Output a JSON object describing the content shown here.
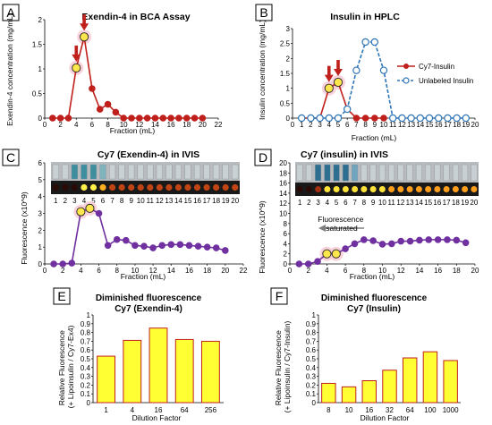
{
  "panels": {
    "A": {
      "letter": "A",
      "title": "Exendin-4 in BCA Assay"
    },
    "B": {
      "letter": "B",
      "title": "Insulin in HPLC"
    },
    "C": {
      "letter": "C",
      "title": "Cy7 (Exendin-4) in IVIS"
    },
    "D": {
      "letter": "D",
      "title": "Cy7 (insulin) in IVIS"
    },
    "E": {
      "letter": "E",
      "title_line1": "Diminished fluorescence",
      "title_line2": "Cy7 (Exendin-4)"
    },
    "F": {
      "letter": "F",
      "title_line1": "Diminished fluorescence",
      "title_line2": "Cy7 (Insulin)"
    }
  },
  "chart_data": [
    {
      "id": "A",
      "type": "line",
      "title": "Exendin-4 in BCA Assay",
      "xlabel": "Fraction (mL)",
      "ylabel": "Exendin-4 concentration (mg/mL)",
      "xlim": [
        0,
        22
      ],
      "ylim": [
        0,
        2
      ],
      "xticks": [
        0,
        2,
        4,
        6,
        8,
        10,
        12,
        14,
        16,
        18,
        20,
        22
      ],
      "yticks": [
        0,
        0.5,
        1,
        1.5,
        2
      ],
      "ytick_labels": [
        "0",
        "0.5",
        "1",
        "1.5",
        "2"
      ],
      "series": [
        {
          "color": "#c0201c",
          "marker": "filled",
          "x": [
            1,
            2,
            3,
            4,
            5,
            6,
            7,
            8,
            9,
            10,
            11,
            12,
            13,
            14,
            15,
            16,
            17,
            18,
            19,
            20
          ],
          "y": [
            0,
            0,
            0,
            1.02,
            1.65,
            0.6,
            0.18,
            0.28,
            0.12,
            0,
            0,
            0,
            0,
            0,
            0,
            0,
            0,
            0,
            0,
            0
          ]
        }
      ],
      "highlight_x": [
        4,
        5
      ],
      "highlight_color": "#fde74c",
      "arrows_at": [
        4,
        5
      ]
    },
    {
      "id": "B",
      "type": "line",
      "title": "Insulin in HPLC",
      "xlabel": "Fraction (mL)",
      "ylabel": "Insulin concentration (mg/mL)",
      "xlim": [
        0,
        20
      ],
      "ylim": [
        0,
        3
      ],
      "xticks": [
        0,
        1,
        2,
        3,
        4,
        5,
        6,
        7,
        8,
        9,
        10,
        11,
        12,
        13,
        14,
        15,
        16,
        17,
        18,
        19,
        20
      ],
      "yticks": [
        0,
        0.5,
        1,
        1.5,
        2,
        2.5,
        3
      ],
      "ytick_labels": [
        "0",
        "0.5",
        "1",
        "1.5",
        "2",
        "2.5",
        "3"
      ],
      "legend": "right",
      "series": [
        {
          "name": "Cy7-Insulin",
          "color": "#c0201c",
          "marker": "filled",
          "x": [
            1,
            2,
            3,
            4,
            5,
            6,
            7,
            8,
            9,
            10
          ],
          "y": [
            0,
            0,
            0,
            1.0,
            1.2,
            0.3,
            0,
            0,
            0,
            0
          ]
        },
        {
          "name": "Unlabeled Insulin",
          "color": "#2e75b6",
          "marker": "open",
          "dashed": true,
          "x": [
            1,
            2,
            3,
            4,
            5,
            6,
            7,
            8,
            9,
            10,
            11,
            12,
            13,
            14,
            15,
            16,
            17,
            18,
            19
          ],
          "y": [
            0,
            0,
            0,
            0,
            0,
            0.3,
            1.6,
            2.55,
            2.55,
            1.6,
            0,
            0,
            0,
            0,
            0,
            0,
            0,
            0,
            0
          ]
        }
      ],
      "highlight_x": [
        4,
        5
      ],
      "highlight_color": "#fde74c",
      "arrows_at": [
        4,
        5
      ]
    },
    {
      "id": "C",
      "type": "line",
      "title": "Cy7 (Exendin-4) in IVIS",
      "xlabel": "Fraction (mL)",
      "ylabel": "Fluorescence (x10^9)",
      "xlim": [
        0,
        22
      ],
      "ylim": [
        0,
        6
      ],
      "xticks": [
        0,
        2,
        4,
        6,
        8,
        10,
        12,
        14,
        16,
        18,
        20,
        22
      ],
      "yticks": [
        0,
        1,
        2,
        3,
        4,
        5,
        6
      ],
      "ytick_labels": [
        "0",
        "1",
        "2",
        "3",
        "4",
        "5",
        "6"
      ],
      "series": [
        {
          "color": "#7030a0",
          "marker": "filled",
          "x": [
            1,
            2,
            3,
            4,
            5,
            6,
            7,
            8,
            9,
            10,
            11,
            12,
            13,
            14,
            15,
            16,
            17,
            18,
            19,
            20
          ],
          "y": [
            0,
            0,
            0.05,
            3.1,
            3.3,
            3.0,
            1.1,
            1.45,
            1.4,
            1.1,
            1.05,
            0.95,
            1.1,
            1.15,
            1.15,
            1.1,
            1.05,
            1.0,
            0.95,
            0.8
          ]
        }
      ],
      "highlight_x": [
        4,
        5
      ],
      "highlight_color": "#fde74c",
      "strip_labels": [
        "1",
        "2",
        "3",
        "4",
        "5",
        "6",
        "7",
        "8",
        "9",
        "10",
        "11",
        "12",
        "13",
        "14",
        "15",
        "16",
        "17",
        "18",
        "19",
        "20"
      ]
    },
    {
      "id": "D",
      "type": "line",
      "title": "Cy7 (insulin) in IVIS",
      "xlabel": "Fraction (mL)",
      "ylabel": "Fluorescence (x10^9)",
      "xlim": [
        0,
        20
      ],
      "ylim": [
        0,
        20
      ],
      "xticks": [
        0,
        2,
        4,
        6,
        8,
        10,
        12,
        14,
        16,
        18,
        20
      ],
      "yticks": [
        0,
        2,
        4,
        6,
        8,
        10,
        12,
        14,
        16,
        18,
        20
      ],
      "ytick_labels": [
        "0",
        "2",
        "4",
        "6",
        "8",
        "10",
        "12",
        "14",
        "16",
        "18",
        "20"
      ],
      "annotation": "Fluorescence saturated",
      "series": [
        {
          "color": "#7030a0",
          "marker": "filled",
          "x": [
            1,
            2,
            3,
            4,
            5,
            6,
            7,
            8,
            9,
            10,
            11,
            12,
            13,
            14,
            15,
            16,
            17,
            18,
            19
          ],
          "y": [
            0,
            0,
            0.5,
            2,
            2,
            3,
            4,
            4.8,
            4.6,
            3.9,
            4.0,
            4.5,
            4.5,
            4.7,
            4.8,
            4.8,
            4.8,
            4.7,
            4.2
          ]
        }
      ],
      "highlight_x": [
        4,
        5
      ],
      "highlight_color": "#fde74c",
      "strip_labels": [
        "1",
        "2",
        "3",
        "4",
        "5",
        "6",
        "7",
        "8",
        "9",
        "10",
        "11",
        "12",
        "13",
        "14",
        "15",
        "16",
        "17",
        "18",
        "19",
        "20"
      ]
    },
    {
      "id": "E",
      "type": "bar",
      "title": "Diminished fluorescence Cy7 (Exendin-4)",
      "xlabel": "Dilution Factor",
      "ylabel": "Relative Fluorescence (+ Lipoinsulin / Cy7-Ex4)",
      "categories": [
        "1",
        "4",
        "16",
        "64",
        "256"
      ],
      "values": [
        0.53,
        0.71,
        0.85,
        0.72,
        0.7
      ],
      "ylim": [
        0,
        1
      ],
      "yticks": [
        0,
        0.1,
        0.2,
        0.3,
        0.4,
        0.5,
        0.6,
        0.7,
        0.8,
        0.9,
        1
      ],
      "ytick_labels": [
        "0",
        "0.1",
        "0.2",
        "0.3",
        "0.4",
        "0.5",
        "0.6",
        "0.7",
        "0.8",
        "0.9",
        "1"
      ],
      "bar_fill": "#ffff33",
      "bar_edge": "#c0201c"
    },
    {
      "id": "F",
      "type": "bar",
      "title": "Diminished fluorescence Cy7 (Insulin)",
      "xlabel": "Dilution Factor",
      "ylabel": "Relative Fluorescence (+ Lipoinsulin / Cy7-Insulin)",
      "categories": [
        "8",
        "10",
        "16",
        "32",
        "64",
        "100",
        "1000"
      ],
      "values": [
        0.22,
        0.18,
        0.25,
        0.37,
        0.51,
        0.58,
        0.48
      ],
      "ylim": [
        0,
        1
      ],
      "yticks": [
        0,
        0.1,
        0.2,
        0.3,
        0.4,
        0.5,
        0.6,
        0.7,
        0.8,
        0.9,
        1
      ],
      "ytick_labels": [
        "0",
        "0.1",
        "0.2",
        "0.3",
        "0.4",
        "0.5",
        "0.6",
        "0.7",
        "0.8",
        "0.9",
        "1"
      ],
      "bar_fill": "#ffff33",
      "bar_edge": "#c0201c"
    }
  ]
}
